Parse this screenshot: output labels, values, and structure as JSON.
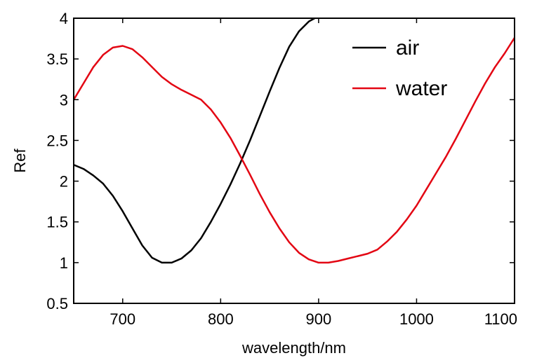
{
  "chart_data": {
    "type": "line",
    "title": "",
    "xlabel": "wavelength/nm",
    "ylabel": "Ref",
    "xlim": [
      650,
      1100
    ],
    "ylim": [
      0.5,
      4
    ],
    "xticks": [
      700,
      800,
      900,
      1000,
      1100
    ],
    "yticks": [
      0.5,
      1,
      1.5,
      2,
      2.5,
      3,
      3.5,
      4
    ],
    "xtick_labels": [
      "700",
      "800",
      "900",
      "1000",
      "1100"
    ],
    "ytick_labels": [
      "0.5",
      "1",
      "1.5",
      "2",
      "2.5",
      "3",
      "3.5",
      "4"
    ],
    "grid": false,
    "legend_position": "top-right",
    "series": [
      {
        "name": "air",
        "color": "#000000",
        "x": [
          650,
          660,
          670,
          680,
          690,
          700,
          710,
          720,
          730,
          740,
          750,
          760,
          770,
          780,
          790,
          800,
          810,
          820,
          830,
          840,
          850,
          860,
          870,
          880,
          890,
          896
        ],
        "y": [
          2.2,
          2.15,
          2.07,
          1.97,
          1.82,
          1.63,
          1.42,
          1.21,
          1.06,
          1.0,
          1.0,
          1.05,
          1.15,
          1.3,
          1.5,
          1.72,
          1.96,
          2.22,
          2.5,
          2.8,
          3.1,
          3.39,
          3.65,
          3.84,
          3.96,
          4.0
        ]
      },
      {
        "name": "water",
        "color": "#e30613",
        "x": [
          650,
          660,
          670,
          680,
          690,
          700,
          710,
          720,
          730,
          740,
          750,
          760,
          770,
          780,
          790,
          800,
          810,
          820,
          830,
          840,
          850,
          860,
          870,
          880,
          890,
          900,
          910,
          920,
          930,
          940,
          950,
          960,
          970,
          980,
          990,
          1000,
          1010,
          1020,
          1030,
          1040,
          1050,
          1060,
          1070,
          1080,
          1090,
          1100
        ],
        "y": [
          3.0,
          3.2,
          3.4,
          3.55,
          3.64,
          3.66,
          3.62,
          3.52,
          3.4,
          3.28,
          3.19,
          3.12,
          3.06,
          3.0,
          2.88,
          2.72,
          2.53,
          2.31,
          2.08,
          1.84,
          1.62,
          1.42,
          1.25,
          1.12,
          1.04,
          1.0,
          1.0,
          1.02,
          1.05,
          1.08,
          1.11,
          1.16,
          1.26,
          1.38,
          1.53,
          1.7,
          1.9,
          2.1,
          2.3,
          2.52,
          2.75,
          2.98,
          3.2,
          3.4,
          3.57,
          3.76
        ]
      }
    ]
  }
}
